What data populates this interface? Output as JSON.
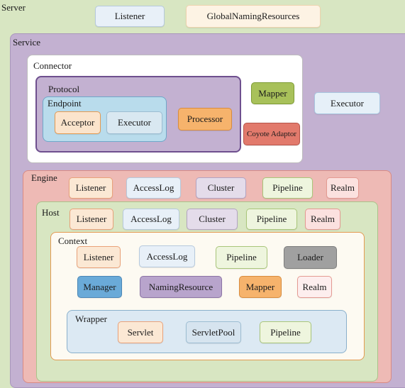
{
  "server": {
    "label": "Server",
    "listener": "Listener",
    "global_naming_resources": "GlobalNamingResources"
  },
  "service": {
    "label": "Service",
    "executor": "Executor",
    "connector": {
      "label": "Connector",
      "mapper": "Mapper",
      "coyote_adaptor": "Coyote Adaptor",
      "protocol": {
        "label": "Protocol",
        "processor": "Processor",
        "endpoint": {
          "label": "Endpoint",
          "acceptor": "Acceptor",
          "executor": "Executor"
        }
      }
    },
    "engine": {
      "label": "Engine",
      "components": [
        "Listener",
        "AccessLog",
        "Cluster",
        "Pipeline",
        "Realm"
      ],
      "host": {
        "label": "Host",
        "components": [
          "Listener",
          "AccessLog",
          "Cluster",
          "Pipeline",
          "Realm"
        ],
        "context": {
          "label": "Context",
          "row1": [
            "Listener",
            "AccessLog",
            "Pipeline",
            "Loader"
          ],
          "row2": [
            "Manager",
            "NamingResource",
            "Mapper",
            "Realm"
          ],
          "wrapper": {
            "label": "Wrapper",
            "components": [
              "Servlet",
              "ServletPool",
              "Pipeline"
            ]
          }
        }
      }
    }
  },
  "colors": {
    "server_bg": "#d8e6c2",
    "service_bg": "#c3b1d1",
    "connector_bg": "#ffffff",
    "protocol_bg": "#c3b1d1",
    "protocol_border": "#6e4f8e",
    "endpoint_bg": "#b9dcec",
    "processor_bg": "#f6b36c",
    "mapper_bg": "#a8c15a",
    "coyote_bg": "#e27a6c",
    "engine_bg": "#eebab5",
    "host_bg": "#d8e6c2",
    "context_bg": "#fdfaf2",
    "context_border": "#e39a52",
    "wrapper_bg": "#dce9f3",
    "wrapper_border": "#8ab0cc",
    "loader_bg": "#a0a0a0",
    "manager_bg": "#6aaad8",
    "naming_bg": "#b8a4cc",
    "ctx_mapper_bg": "#f6b36c"
  }
}
